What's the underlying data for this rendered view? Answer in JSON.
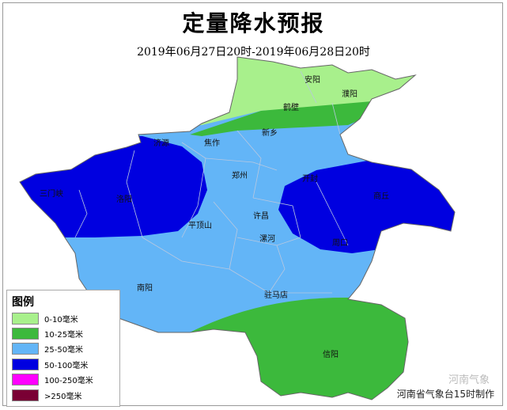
{
  "title": "定量降水预报",
  "subtitle": "2019年06月27日20时-2019年06月28日20时",
  "cities": [
    "安阳",
    "濮阳",
    "鹤壁",
    "新乡",
    "济源",
    "焦作",
    "郑州",
    "开封",
    "商丘",
    "三门峡",
    "洛阳",
    "许昌",
    "平顶山",
    "漯河",
    "周口",
    "南阳",
    "驻马店",
    "信阳"
  ],
  "legend": {
    "title": "图例",
    "items": [
      {
        "label": "0-10毫米",
        "color": "#a8f08c"
      },
      {
        "label": "10-25毫米",
        "color": "#3cb93c"
      },
      {
        "label": "25-50毫米",
        "color": "#63b5f7"
      },
      {
        "label": "50-100毫米",
        "color": "#0000e0"
      },
      {
        "label": "100-250毫米",
        "color": "#ff00ff"
      },
      {
        "label": ">250毫米",
        "color": "#7a0034"
      }
    ]
  },
  "credit": "河南省气象台15时制作",
  "watermark": "河南气象"
}
